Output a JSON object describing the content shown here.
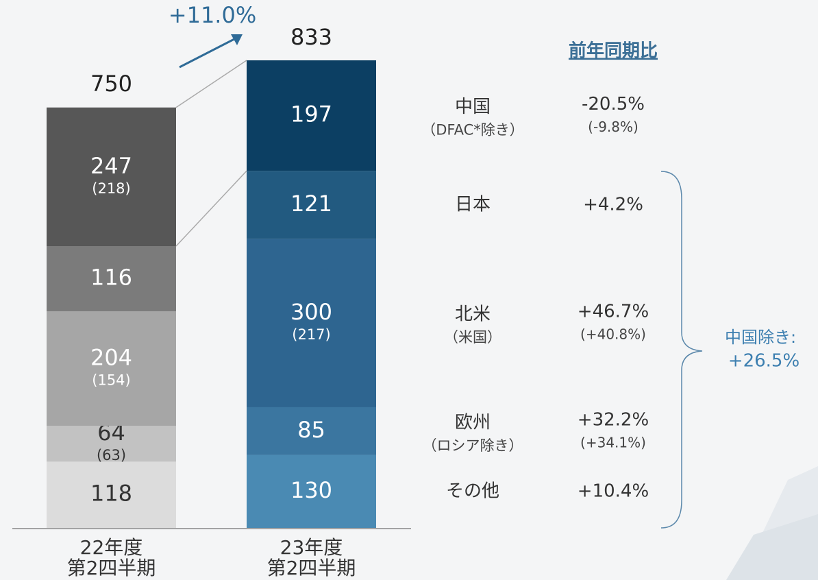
{
  "chart_data": {
    "type": "stacked_bar",
    "categories": [
      [
        "22年度",
        "第2四半期"
      ],
      [
        "23年度",
        "第2四半期"
      ]
    ],
    "totals": [
      750,
      833
    ],
    "growth_label": "+11.0%",
    "header": "前年同期比",
    "brace_label": [
      "中国除き:",
      "+26.5%"
    ],
    "series": [
      {
        "name": "その他",
        "values": [
          118,
          130
        ],
        "color": [
          "#dcdcdc",
          "#4a8ab3"
        ],
        "yoy": "+10.4%"
      },
      {
        "name": "欧州",
        "name_note": "（ロシア除き）",
        "values": [
          64,
          85
        ],
        "sub_labels": [
          "(63)",
          null
        ],
        "color": [
          "#c2c2c2",
          "#3b76a0"
        ],
        "yoy": "+32.2%",
        "yoy_note": "(+34.1%)"
      },
      {
        "name": "北米",
        "name_note": "（米国）",
        "values": [
          204,
          300
        ],
        "sub_labels": [
          "(154)",
          "(217)"
        ],
        "color": [
          "#a6a6a6",
          "#2e6590"
        ],
        "yoy": "+46.7%",
        "yoy_note": "(+40.8%)"
      },
      {
        "name": "日本",
        "values": [
          116,
          121
        ],
        "color": [
          "#7b7b7b",
          "#225a80"
        ],
        "yoy": "+4.2%"
      },
      {
        "name": "中国",
        "name_note": "（DFAC*除き）",
        "values": [
          247,
          197
        ],
        "sub_labels": [
          "(218)",
          null
        ],
        "color": [
          "#575757",
          "#0c3f63"
        ],
        "yoy": "-20.5%",
        "yoy_note": "(-9.8%)"
      }
    ]
  }
}
